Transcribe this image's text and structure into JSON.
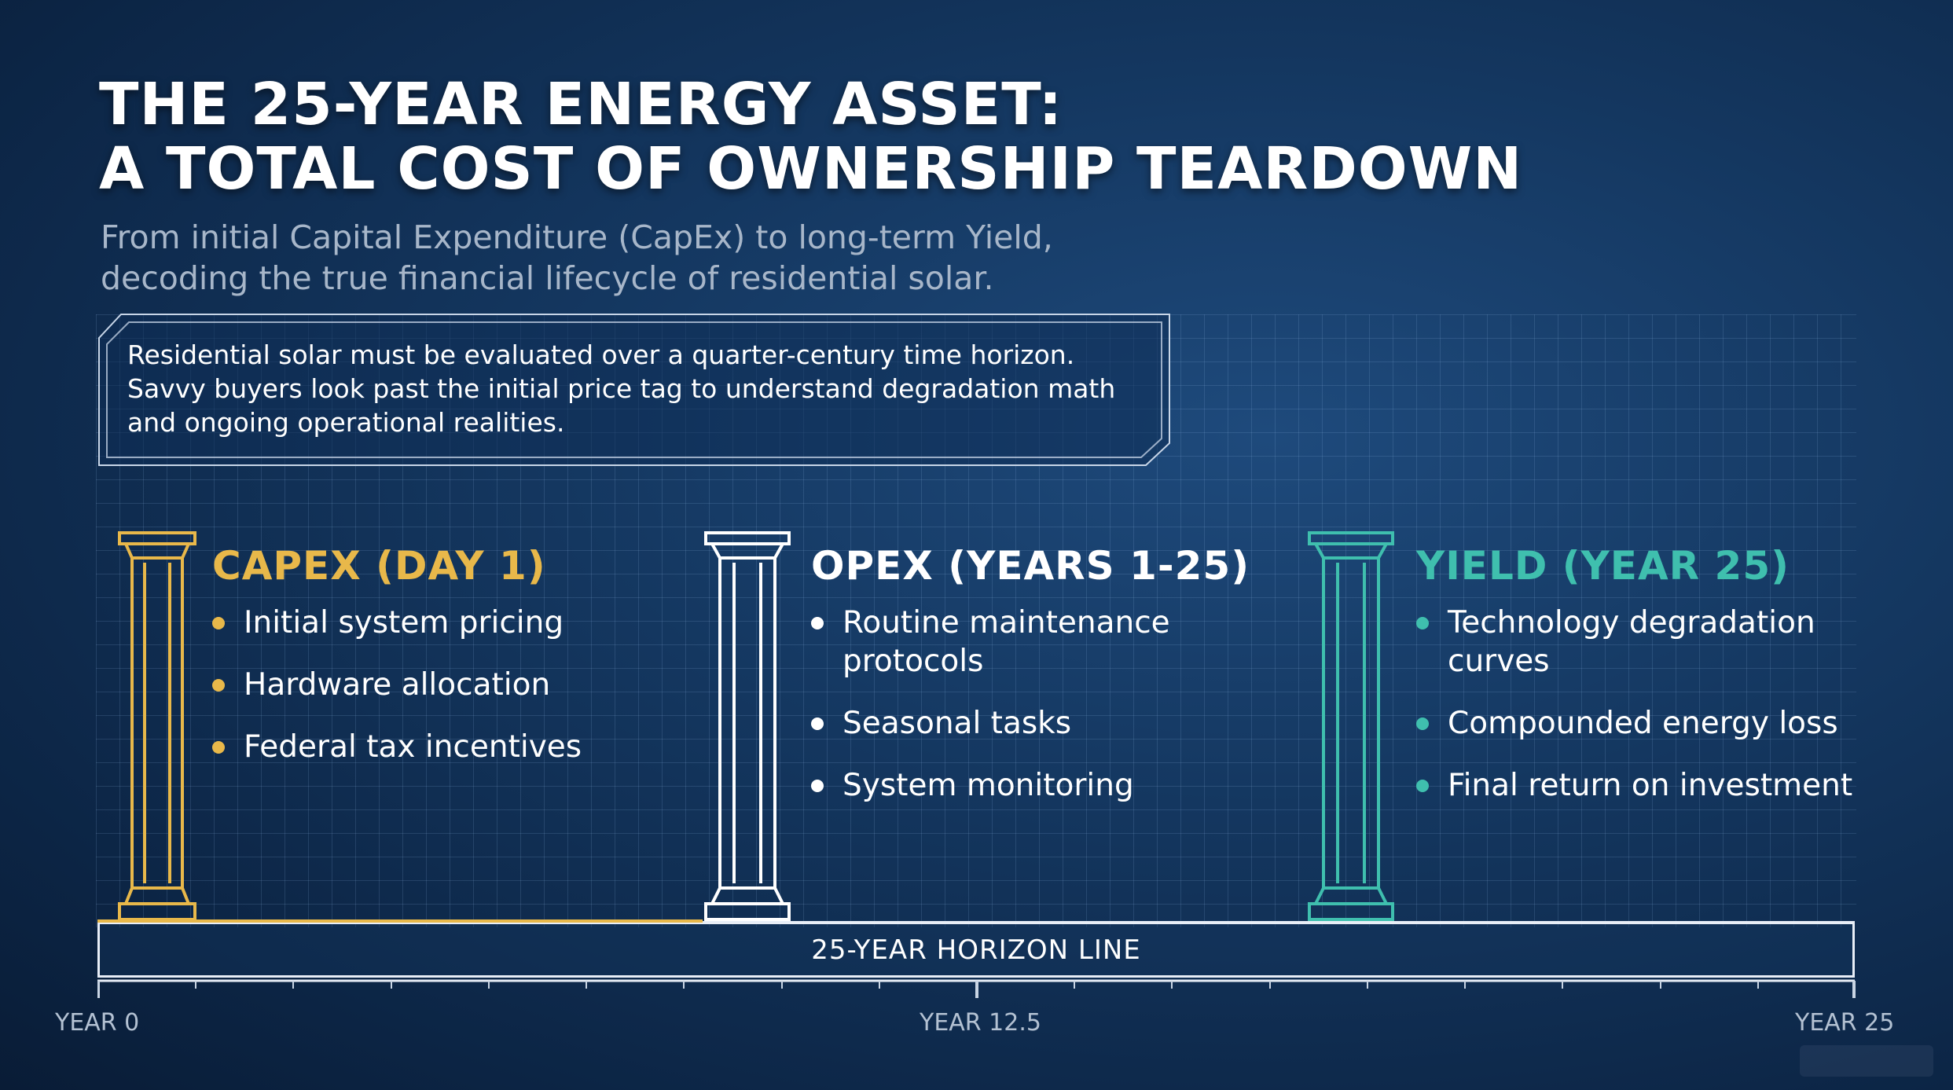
{
  "title": {
    "line1": "THE 25-YEAR ENERGY ASSET:",
    "line2": "A TOTAL COST OF OWNERSHIP TEARDOWN"
  },
  "subtitle": {
    "line1": "From initial Capital Expenditure (CapEx) to long-term Yield,",
    "line2": "decoding the true financial lifecycle of residential solar."
  },
  "callout": {
    "line1": "Residential solar must be evaluated over a quarter-century time horizon.",
    "line2": "Savvy buyers look past the initial price tag to understand degradation math",
    "line3": "and ongoing operational realities."
  },
  "phases": [
    {
      "title": "CAPEX (DAY 1)",
      "color": "#e8b84a",
      "items": [
        "Initial system pricing",
        "Hardware allocation",
        "Federal tax incentives"
      ]
    },
    {
      "title": "OPEX (YEARS 1-25)",
      "color": "#ffffff",
      "items": [
        "Routine maintenance protocols",
        "Seasonal tasks",
        "System monitoring"
      ]
    },
    {
      "title": "YIELD (YEAR 25)",
      "color": "#3fbfae",
      "items": [
        "Technology degradation curves",
        "Compounded energy loss",
        "Final return on investment"
      ]
    }
  ],
  "horizon": {
    "label": "25-YEAR HORIZON LINE"
  },
  "axis": {
    "start": "YEAR 0",
    "mid": "YEAR 12.5",
    "end": "YEAR 25"
  },
  "icons": {
    "pillar": "pillar-icon"
  }
}
